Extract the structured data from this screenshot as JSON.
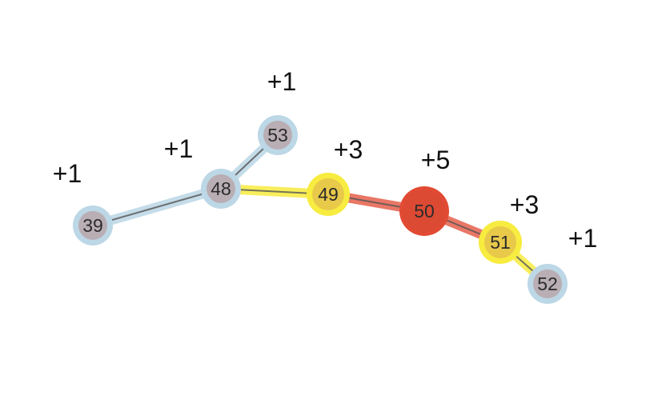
{
  "diagram": {
    "nodes": [
      {
        "id": "39",
        "label": "39",
        "score": "+1",
        "level": "low"
      },
      {
        "id": "48",
        "label": "48",
        "score": "+1",
        "level": "low"
      },
      {
        "id": "53",
        "label": "53",
        "score": "+1",
        "level": "low"
      },
      {
        "id": "49",
        "label": "49",
        "score": "+3",
        "level": "mid"
      },
      {
        "id": "50",
        "label": "50",
        "score": "+5",
        "level": "high"
      },
      {
        "id": "51",
        "label": "51",
        "score": "+3",
        "level": "mid"
      },
      {
        "id": "52",
        "label": "52",
        "score": "+1",
        "level": "low"
      }
    ],
    "edges": [
      {
        "from": "39",
        "to": "48",
        "level": "low"
      },
      {
        "from": "48",
        "to": "53",
        "level": "low"
      },
      {
        "from": "48",
        "to": "49",
        "level": "mid"
      },
      {
        "from": "49",
        "to": "50",
        "level": "high"
      },
      {
        "from": "50",
        "to": "51",
        "level": "high"
      },
      {
        "from": "51",
        "to": "52",
        "level": "mid"
      }
    ],
    "colors": {
      "low_halo": "#bcd7e6",
      "low_fill": "#b9aeb4",
      "mid_halo": "#f7ec3f",
      "mid_fill": "#e8c94a",
      "high_halo": "#e24a33",
      "high_fill": "#dd4a34",
      "edge_line": "#555555"
    }
  }
}
